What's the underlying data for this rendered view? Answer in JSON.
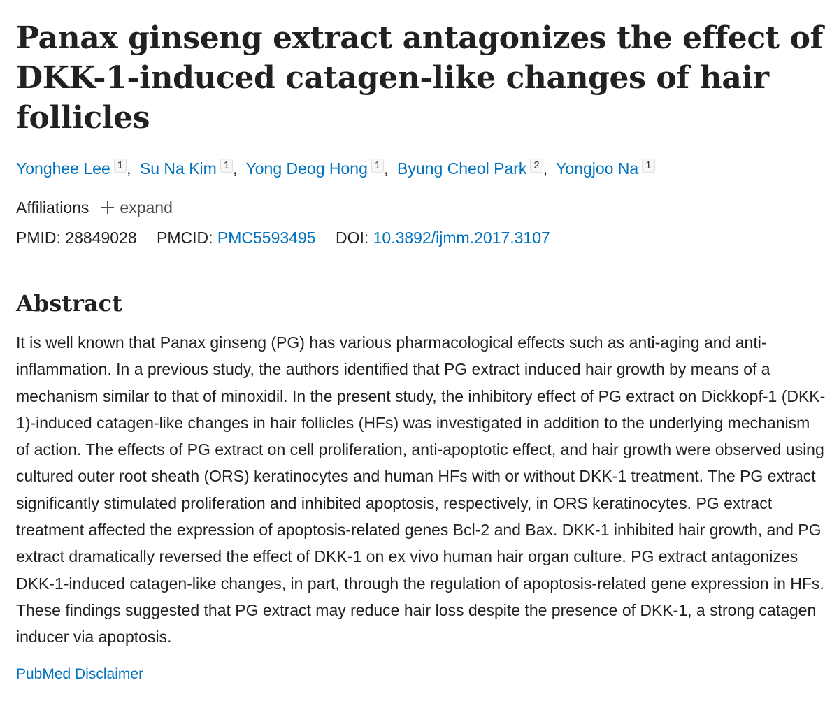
{
  "article": {
    "title": "Panax ginseng extract antagonizes the effect of DKK-1-induced catagen-like changes of hair follicles",
    "authors": [
      {
        "name": "Yonghee Lee",
        "aff": "1"
      },
      {
        "name": "Su Na Kim",
        "aff": "1"
      },
      {
        "name": "Yong Deog Hong",
        "aff": "1"
      },
      {
        "name": "Byung Cheol Park",
        "aff": "2"
      },
      {
        "name": "Yongjoo Na",
        "aff": "1"
      }
    ],
    "separator": ",",
    "affiliations_label": "Affiliations",
    "expand_label": "expand",
    "identifiers": {
      "pmid_label": "PMID:",
      "pmid": "28849028",
      "pmcid_label": "PMCID:",
      "pmcid": "PMC5593495",
      "doi_label": "DOI:",
      "doi": "10.3892/ijmm.2017.3107"
    },
    "abstract_heading": "Abstract",
    "abstract_text": "It is well known that Panax ginseng (PG) has various pharmacological effects such as anti-aging and anti-inflammation. In a previous study, the authors identified that PG extract induced hair growth by means of a mechanism similar to that of minoxidil. In the present study, the inhibitory effect of PG extract on Dickkopf-1 (DKK-1)-induced catagen-like changes in hair follicles (HFs) was investigated in addition to the underlying mechanism of action. The effects of PG extract on cell proliferation, anti-apoptotic effect, and hair growth were observed using cultured outer root sheath (ORS) keratinocytes and human HFs with or without DKK-1 treatment. The PG extract significantly stimulated proliferation and inhibited apoptosis, respectively, in ORS keratinocytes. PG extract treatment affected the expression of apoptosis-related genes Bcl-2 and Bax. DKK-1 inhibited hair growth, and PG extract dramatically reversed the effect of DKK-1 on ex vivo human hair organ culture. PG extract antagonizes DKK-1-induced catagen-like changes, in part, through the regulation of apoptosis-related gene expression in HFs. These findings suggested that PG extract may reduce hair loss despite the presence of DKK-1, a strong catagen inducer via apoptosis.",
    "disclaimer": "PubMed Disclaimer"
  },
  "colors": {
    "link": "#0071bc",
    "text": "#212121"
  },
  "icons": {
    "expand": "plus-icon"
  }
}
